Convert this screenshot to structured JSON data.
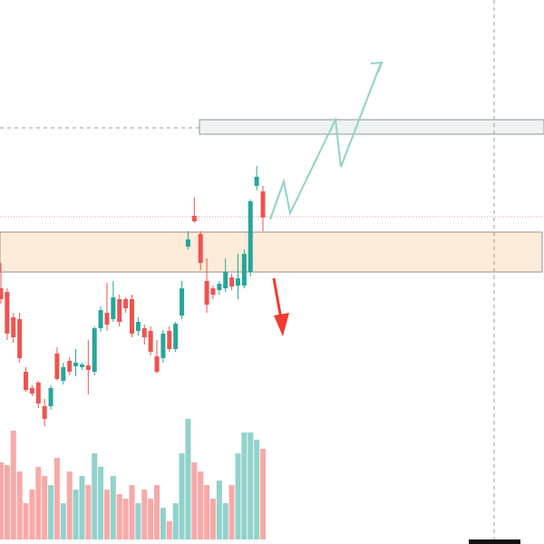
{
  "chart_data": {
    "type": "candlestick",
    "up_color": "#26a69a",
    "down_color": "#ef5350",
    "ylim": [
      0,
      600
    ],
    "y2lim": [
      0,
      595
    ],
    "ohlc": [
      {
        "open": 282,
        "high": 310,
        "low": 265,
        "close": 270
      },
      {
        "open": 278,
        "high": 282,
        "low": 225,
        "close": 232
      },
      {
        "open": 250,
        "high": 255,
        "low": 222,
        "close": 228
      },
      {
        "open": 248,
        "high": 255,
        "low": 200,
        "close": 205
      },
      {
        "open": 190,
        "high": 195,
        "low": 168,
        "close": 170
      },
      {
        "open": 172,
        "high": 175,
        "low": 163,
        "close": 166
      },
      {
        "open": 178,
        "high": 180,
        "low": 150,
        "close": 155
      },
      {
        "open": 152,
        "high": 160,
        "low": 130,
        "close": 138
      },
      {
        "open": 152,
        "high": 175,
        "low": 148,
        "close": 172
      },
      {
        "open": 210,
        "high": 217,
        "low": 180,
        "close": 182
      },
      {
        "open": 180,
        "high": 200,
        "low": 176,
        "close": 195
      },
      {
        "open": 202,
        "high": 206,
        "low": 186,
        "close": 190
      },
      {
        "open": 196,
        "high": 215,
        "low": 185,
        "close": 200
      },
      {
        "open": 195,
        "high": 200,
        "low": 192,
        "close": 198
      },
      {
        "open": 197,
        "high": 225,
        "low": 165,
        "close": 192
      },
      {
        "open": 190,
        "high": 240,
        "low": 186,
        "close": 238
      },
      {
        "open": 238,
        "high": 262,
        "low": 234,
        "close": 258
      },
      {
        "open": 255,
        "high": 288,
        "low": 235,
        "close": 242
      },
      {
        "open": 248,
        "high": 290,
        "low": 245,
        "close": 272
      },
      {
        "open": 270,
        "high": 275,
        "low": 240,
        "close": 245
      },
      {
        "open": 270,
        "high": 272,
        "low": 255,
        "close": 260
      },
      {
        "open": 270,
        "high": 275,
        "low": 228,
        "close": 232
      },
      {
        "open": 235,
        "high": 250,
        "low": 230,
        "close": 245
      },
      {
        "open": 238,
        "high": 242,
        "low": 220,
        "close": 228
      },
      {
        "open": 235,
        "high": 240,
        "low": 208,
        "close": 212
      },
      {
        "open": 207,
        "high": 225,
        "low": 188,
        "close": 190
      },
      {
        "open": 205,
        "high": 236,
        "low": 200,
        "close": 232
      },
      {
        "open": 235,
        "high": 240,
        "low": 212,
        "close": 215
      },
      {
        "open": 215,
        "high": 245,
        "low": 212,
        "close": 243
      },
      {
        "open": 252,
        "high": 290,
        "low": 248,
        "close": 282
      },
      {
        "open": 328,
        "high": 345,
        "low": 325,
        "close": 336
      },
      {
        "open": 362,
        "high": 382,
        "low": 354,
        "close": 356
      },
      {
        "open": 342,
        "high": 345,
        "low": 302,
        "close": 310
      },
      {
        "open": 290,
        "high": 315,
        "low": 255,
        "close": 264
      },
      {
        "open": 282,
        "high": 285,
        "low": 270,
        "close": 275
      },
      {
        "open": 280,
        "high": 290,
        "low": 275,
        "close": 287
      },
      {
        "open": 282,
        "high": 315,
        "low": 278,
        "close": 300
      },
      {
        "open": 294,
        "high": 298,
        "low": 280,
        "close": 284
      },
      {
        "open": 285,
        "high": 320,
        "low": 270,
        "close": 293
      },
      {
        "open": 285,
        "high": 325,
        "low": 282,
        "close": 320
      },
      {
        "open": 300,
        "high": 380,
        "low": 295,
        "close": 378
      },
      {
        "open": 395,
        "high": 417,
        "low": 390,
        "close": 405
      },
      {
        "open": 389,
        "high": 395,
        "low": 345,
        "close": 360
      }
    ],
    "volume": {
      "axis": "y2",
      "values": [
        85,
        82,
        120,
        75,
        40,
        55,
        80,
        70,
        60,
        90,
        40,
        75,
        55,
        70,
        60,
        95,
        80,
        55,
        70,
        50,
        45,
        60,
        40,
        55,
        45,
        60,
        35,
        20,
        40,
        95,
        133,
        85,
        75,
        60,
        45,
        65,
        40,
        60,
        95,
        118,
        118,
        110,
        100
      ]
    }
  }
}
